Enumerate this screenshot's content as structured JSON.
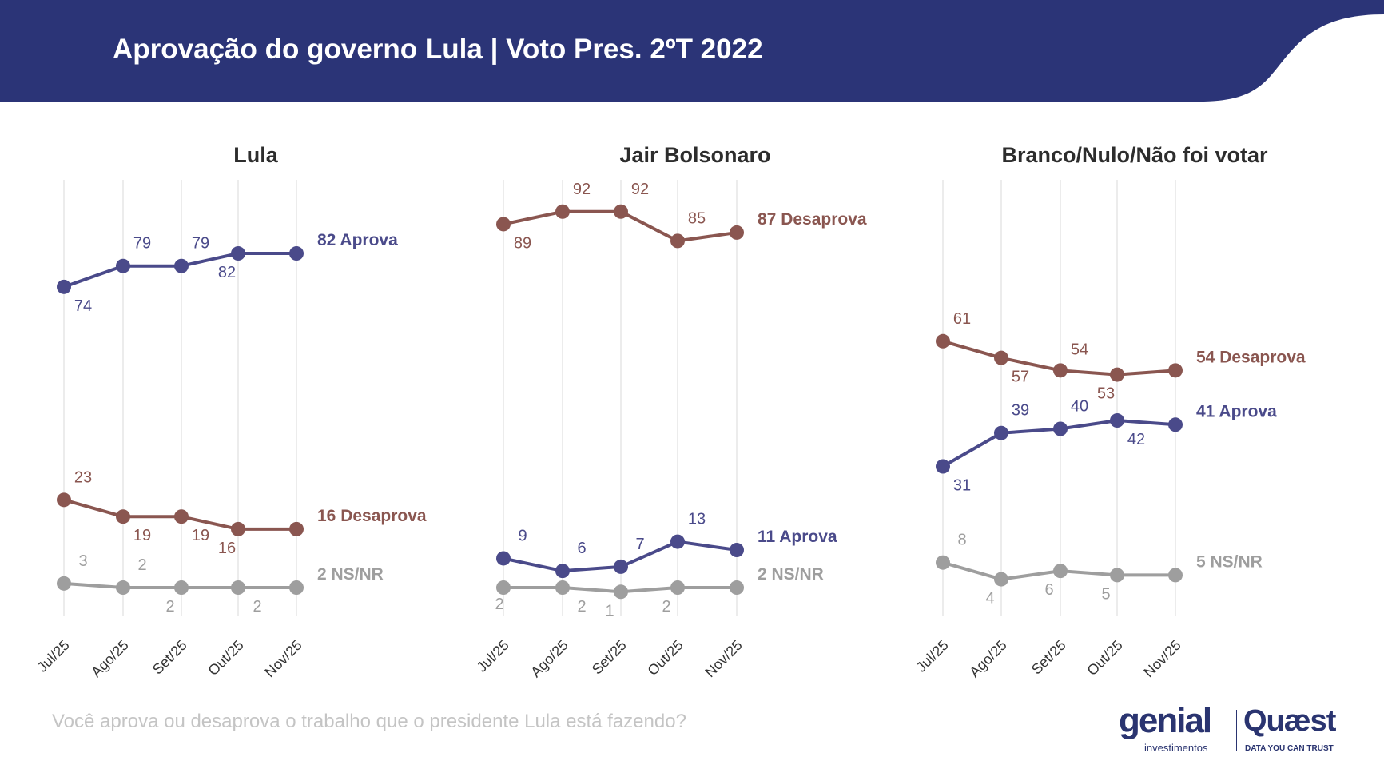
{
  "header": {
    "title": "Aprovação do governo Lula | Voto Pres. 2ºT 2022",
    "color": "#2b3477"
  },
  "footer": {
    "question": "Você aprova ou desaprova o trabalho que o presidente Lula está fazendo?"
  },
  "logos": {
    "genial": "genial",
    "genial_sub": "investimentos",
    "quaest": "Quæst",
    "quaest_sub": "DATA YOU CAN TRUST"
  },
  "colors": {
    "aprova": "#4a4a8a",
    "desaprova": "#8a5650",
    "ns": "#9e9e9e",
    "grid": "#e6e6e6"
  },
  "chart_data": [
    {
      "type": "line",
      "title": "Lula",
      "categories": [
        "Jul/25",
        "Ago/25",
        "Set/25",
        "Out/25",
        "Nov/25"
      ],
      "ylim": [
        0,
        100
      ],
      "grid": "vertical",
      "series": [
        {
          "name": "Aprova",
          "key": "aprova",
          "values": [
            74,
            79,
            79,
            82,
            82
          ],
          "end_label": "82 Aprova"
        },
        {
          "name": "Desaprova",
          "key": "desaprova",
          "values": [
            23,
            19,
            19,
            16,
            16
          ],
          "end_label": "16 Desaprova"
        },
        {
          "name": "NS/NR",
          "key": "ns",
          "values": [
            3,
            2,
            2,
            2,
            2
          ],
          "end_label": "2 NS/NR"
        }
      ]
    },
    {
      "type": "line",
      "title": "Jair Bolsonaro",
      "categories": [
        "Jul/25",
        "Ago/25",
        "Set/25",
        "Out/25",
        "Nov/25"
      ],
      "ylim": [
        0,
        100
      ],
      "grid": "vertical",
      "series": [
        {
          "name": "Desaprova",
          "key": "desaprova",
          "values": [
            89,
            92,
            92,
            85,
            87
          ],
          "end_label": "87 Desaprova"
        },
        {
          "name": "Aprova",
          "key": "aprova",
          "values": [
            9,
            6,
            7,
            13,
            11
          ],
          "end_label": "11 Aprova"
        },
        {
          "name": "NS/NR",
          "key": "ns",
          "values": [
            2,
            2,
            1,
            2,
            2
          ],
          "end_label": "2 NS/NR"
        }
      ]
    },
    {
      "type": "line",
      "title": "Branco/Nulo/Não foi votar",
      "categories": [
        "Jul/25",
        "Ago/25",
        "Set/25",
        "Out/25",
        "Nov/25"
      ],
      "ylim": [
        0,
        100
      ],
      "grid": "vertical",
      "series": [
        {
          "name": "Desaprova",
          "key": "desaprova",
          "values": [
            61,
            57,
            54,
            53,
            54
          ],
          "end_label": "54 Desaprova"
        },
        {
          "name": "Aprova",
          "key": "aprova",
          "values": [
            31,
            39,
            40,
            42,
            41
          ],
          "end_label": "41 Aprova"
        },
        {
          "name": "NS/NR",
          "key": "ns",
          "values": [
            8,
            4,
            6,
            5,
            5
          ],
          "end_label": "5 NS/NR"
        }
      ]
    }
  ]
}
